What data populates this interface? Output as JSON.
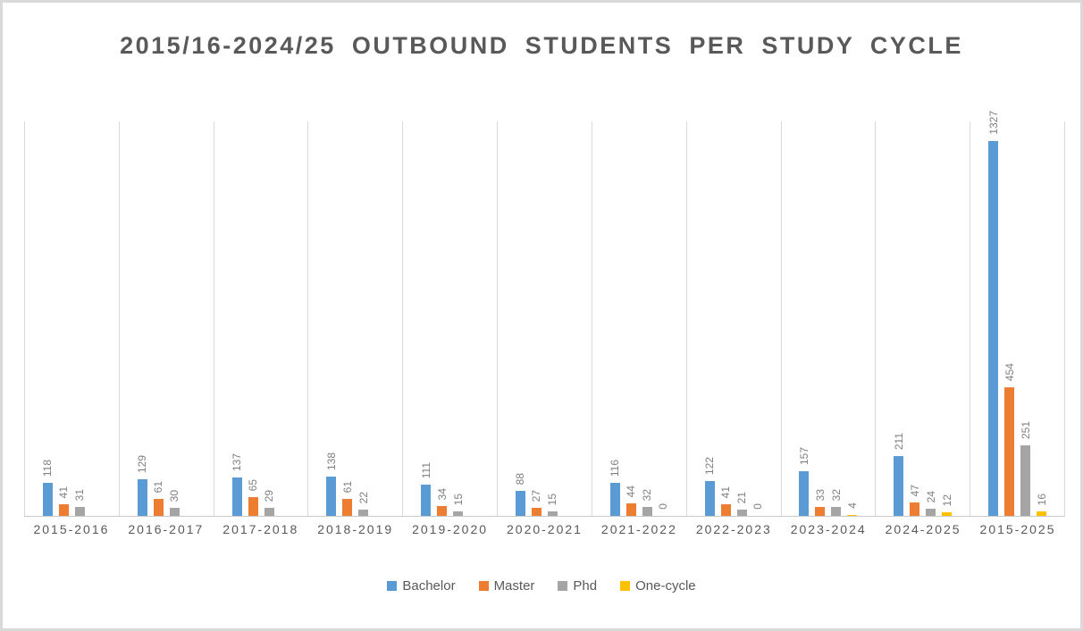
{
  "title": "2015/16-2024/25 OUTBOUND STUDENTS PER STUDY CYCLE",
  "chart_data": {
    "type": "bar",
    "title": "2015/16-2024/25 OUTBOUND STUDENTS PER STUDY CYCLE",
    "categories": [
      "2015-2016",
      "2016-2017",
      "2017-2018",
      "2018-2019",
      "2019-2020",
      "2020-2021",
      "2021-2022",
      "2022-2023",
      "2023-2024",
      "2024-2025",
      "2015-2025"
    ],
    "series": [
      {
        "name": "Bachelor",
        "color": "#5B9BD5",
        "values": [
          118,
          129,
          137,
          138,
          111,
          88,
          116,
          122,
          157,
          211,
          1327
        ]
      },
      {
        "name": "Master",
        "color": "#ED7D31",
        "values": [
          41,
          61,
          65,
          61,
          34,
          27,
          44,
          41,
          33,
          47,
          454
        ]
      },
      {
        "name": "Phd",
        "color": "#A5A5A5",
        "values": [
          31,
          30,
          29,
          22,
          15,
          15,
          32,
          21,
          32,
          24,
          251
        ]
      },
      {
        "name": "One-cycle",
        "color": "#FFC000",
        "values": [
          null,
          null,
          null,
          null,
          null,
          null,
          0,
          0,
          4,
          12,
          16
        ]
      }
    ],
    "ylim": [
      0,
      1400
    ],
    "xlabel": "",
    "ylabel": "",
    "data_labels": true,
    "data_label_rotation": "vertical",
    "legend_position": "bottom",
    "gridlines": "vertical-category-separators",
    "colors": {
      "gridline": "#D9D9D9",
      "axis_line": "#C9C9C9",
      "title_text": "#595959",
      "axis_text": "#595959",
      "data_label_text": "#7F7F7F",
      "frame_border": "#D9D9D9",
      "background": "#FFFFFF"
    }
  }
}
